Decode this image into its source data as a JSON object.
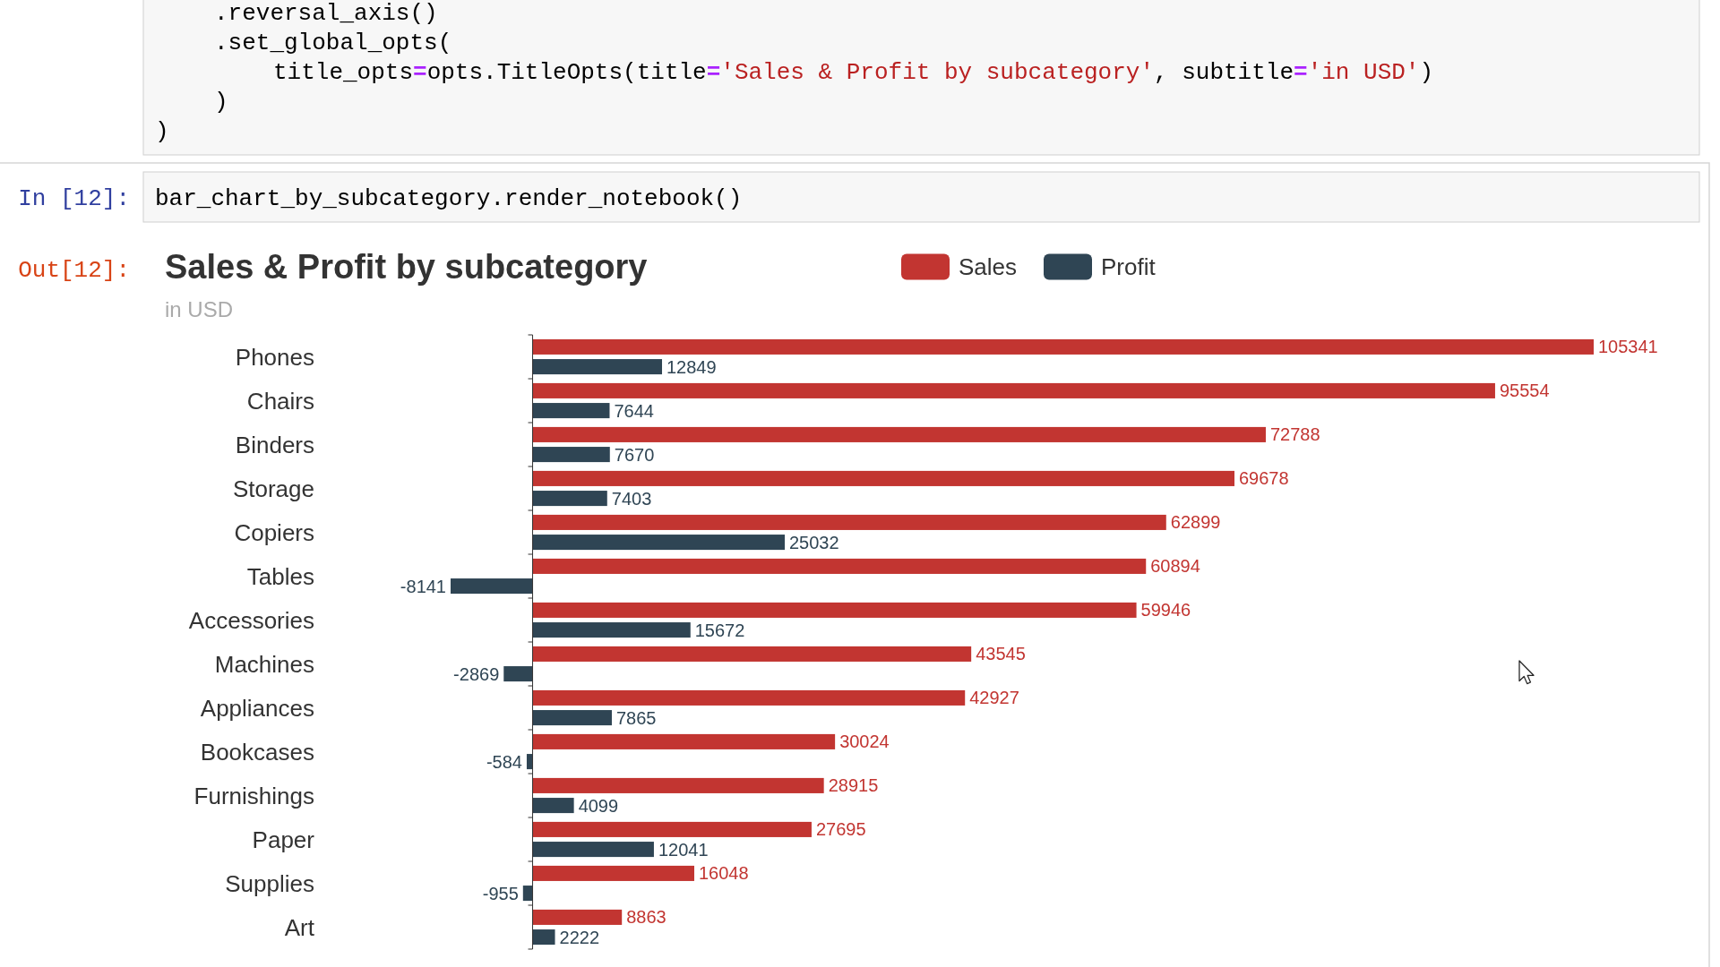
{
  "chart_data": {
    "type": "bar",
    "orientation": "horizontal",
    "title": "Sales & Profit by subcategory",
    "subtitle": "in USD",
    "categories": [
      "Phones",
      "Chairs",
      "Binders",
      "Storage",
      "Copiers",
      "Tables",
      "Accessories",
      "Machines",
      "Appliances",
      "Bookcases",
      "Furnishings",
      "Paper",
      "Supplies",
      "Art"
    ],
    "series": [
      {
        "name": "Sales",
        "color": "#c23531",
        "values": [
          105341,
          95554,
          72788,
          69678,
          62899,
          60894,
          59946,
          43545,
          42927,
          30024,
          28915,
          27695,
          16048,
          8863
        ]
      },
      {
        "name": "Profit",
        "color": "#2f4554",
        "values": [
          12849,
          7644,
          7670,
          7403,
          25032,
          -8141,
          15672,
          -2869,
          7865,
          -584,
          4099,
          12041,
          -955,
          2222
        ]
      }
    ],
    "tick_labels": "y",
    "data_labels": true,
    "legend": "top",
    "annotations": [
      ".reversal_axis()",
      ".set_global_opts(",
      "title_opts=opts.TitleOpts(title='Sales & Profit by subcategory', subtitle='in USD')",
      ")",
      ")",
      "In [12]:",
      "bar_chart_by_subcategory.render_notebook()",
      "Out[12]:"
    ]
  }
}
